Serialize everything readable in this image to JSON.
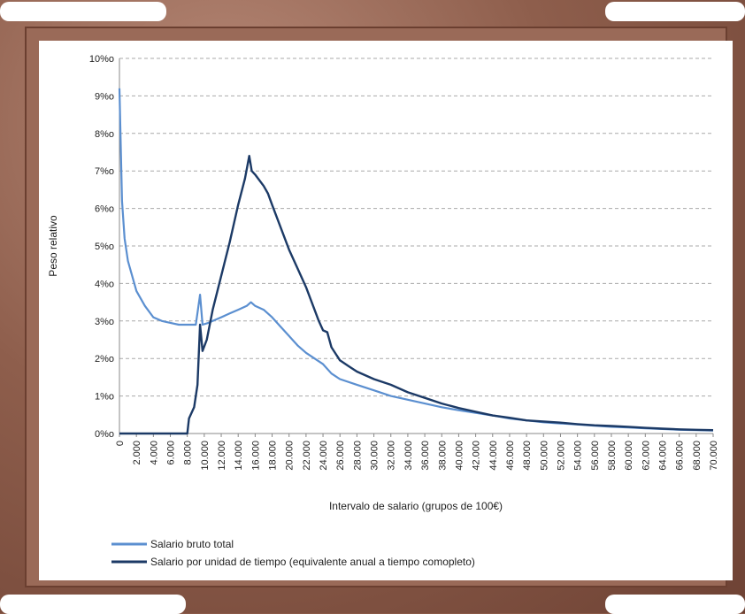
{
  "chart_data": {
    "type": "line",
    "xlabel": "Intervalo de salario  (grupos de 100€)",
    "ylabel": "Peso relativo",
    "xlim": [
      0,
      70000
    ],
    "ylim": [
      0,
      10
    ],
    "x_ticks": [
      "0",
      "2.000",
      "4.000",
      "6.000",
      "8.000",
      "10.000",
      "12.000",
      "14.000",
      "16.000",
      "18.000",
      "20.000",
      "22.000",
      "24.000",
      "26.000",
      "28.000",
      "30.000",
      "32.000",
      "34.000",
      "36.000",
      "38.000",
      "40.000",
      "42.000",
      "44.000",
      "46.000",
      "48.000",
      "50.000",
      "52.000",
      "54.000",
      "56.000",
      "58.000",
      "60.000",
      "62.000",
      "64.000",
      "66.000",
      "68.000",
      "70.000"
    ],
    "y_ticks": [
      "0%o",
      "1%o",
      "2%o",
      "3%o",
      "4%o",
      "5%o",
      "6%o",
      "7%o",
      "8%o",
      "9%o",
      "10%o"
    ],
    "grid": true,
    "legend_position": "bottom-left",
    "series": [
      {
        "name": "Salario bruto total",
        "color": "#5b8fd0",
        "points": [
          [
            0,
            9.2
          ],
          [
            300,
            6.2
          ],
          [
            600,
            5.2
          ],
          [
            1000,
            4.6
          ],
          [
            1500,
            4.2
          ],
          [
            2000,
            3.8
          ],
          [
            3000,
            3.4
          ],
          [
            4000,
            3.1
          ],
          [
            5000,
            3.0
          ],
          [
            6000,
            2.95
          ],
          [
            7000,
            2.9
          ],
          [
            8000,
            2.9
          ],
          [
            9000,
            2.9
          ],
          [
            9500,
            3.7
          ],
          [
            9800,
            2.9
          ],
          [
            10500,
            2.95
          ],
          [
            11000,
            3.0
          ],
          [
            12000,
            3.1
          ],
          [
            13000,
            3.2
          ],
          [
            14000,
            3.3
          ],
          [
            15000,
            3.4
          ],
          [
            15500,
            3.5
          ],
          [
            16000,
            3.4
          ],
          [
            17000,
            3.3
          ],
          [
            18000,
            3.1
          ],
          [
            19000,
            2.85
          ],
          [
            20000,
            2.6
          ],
          [
            21000,
            2.35
          ],
          [
            22000,
            2.15
          ],
          [
            23000,
            2.0
          ],
          [
            24000,
            1.85
          ],
          [
            25000,
            1.6
          ],
          [
            26000,
            1.45
          ],
          [
            28000,
            1.3
          ],
          [
            30000,
            1.15
          ],
          [
            32000,
            1.0
          ],
          [
            34000,
            0.9
          ],
          [
            36000,
            0.8
          ],
          [
            38000,
            0.7
          ],
          [
            40000,
            0.62
          ],
          [
            42000,
            0.55
          ],
          [
            44000,
            0.48
          ],
          [
            46000,
            0.4
          ],
          [
            48000,
            0.35
          ],
          [
            50000,
            0.3
          ],
          [
            52000,
            0.27
          ],
          [
            54000,
            0.24
          ],
          [
            56000,
            0.21
          ],
          [
            58000,
            0.18
          ],
          [
            60000,
            0.16
          ],
          [
            62000,
            0.14
          ],
          [
            64000,
            0.12
          ],
          [
            66000,
            0.1
          ],
          [
            68000,
            0.09
          ],
          [
            70000,
            0.08
          ]
        ]
      },
      {
        "name": "Salario por unidad de tiempo (equivalente anual a tiempo comopleto)",
        "color": "#1c3a66",
        "points": [
          [
            0,
            0
          ],
          [
            8000,
            0
          ],
          [
            8200,
            0.4
          ],
          [
            8800,
            0.7
          ],
          [
            9200,
            1.3
          ],
          [
            9500,
            2.9
          ],
          [
            9800,
            2.2
          ],
          [
            10300,
            2.5
          ],
          [
            11000,
            3.3
          ],
          [
            12000,
            4.2
          ],
          [
            13000,
            5.1
          ],
          [
            14000,
            6.1
          ],
          [
            14800,
            6.8
          ],
          [
            15300,
            7.4
          ],
          [
            15600,
            7.0
          ],
          [
            16000,
            6.9
          ],
          [
            17000,
            6.6
          ],
          [
            17500,
            6.4
          ],
          [
            18000,
            6.1
          ],
          [
            19000,
            5.5
          ],
          [
            20000,
            4.9
          ],
          [
            21000,
            4.4
          ],
          [
            22000,
            3.9
          ],
          [
            23000,
            3.3
          ],
          [
            23500,
            3.0
          ],
          [
            24000,
            2.75
          ],
          [
            24500,
            2.7
          ],
          [
            25000,
            2.3
          ],
          [
            26000,
            1.95
          ],
          [
            27000,
            1.8
          ],
          [
            28000,
            1.65
          ],
          [
            30000,
            1.45
          ],
          [
            32000,
            1.3
          ],
          [
            34000,
            1.1
          ],
          [
            36000,
            0.95
          ],
          [
            38000,
            0.8
          ],
          [
            40000,
            0.68
          ],
          [
            42000,
            0.58
          ],
          [
            44000,
            0.48
          ],
          [
            46000,
            0.42
          ],
          [
            48000,
            0.35
          ],
          [
            50000,
            0.32
          ],
          [
            52000,
            0.29
          ],
          [
            54000,
            0.25
          ],
          [
            56000,
            0.22
          ],
          [
            58000,
            0.2
          ],
          [
            60000,
            0.18
          ],
          [
            62000,
            0.15
          ],
          [
            64000,
            0.13
          ],
          [
            66000,
            0.11
          ],
          [
            68000,
            0.1
          ],
          [
            70000,
            0.09
          ]
        ]
      }
    ]
  }
}
